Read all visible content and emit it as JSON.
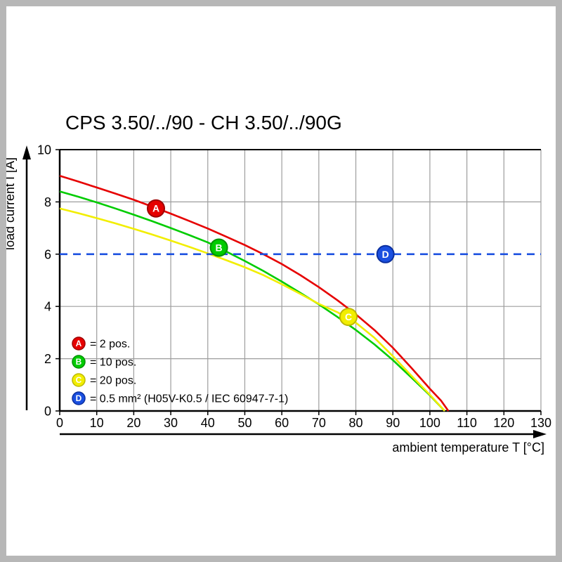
{
  "title": "CPS 3.50/../90 - CH 3.50/../90G",
  "chart_data": {
    "type": "line",
    "title": "CPS 3.50/../90 - CH 3.50/../90G",
    "xlabel": "ambient temperature T [°C]",
    "ylabel": "load current I [A]",
    "xlim": [
      0,
      130
    ],
    "ylim": [
      0,
      10
    ],
    "xticks": [
      0,
      10,
      20,
      30,
      40,
      50,
      60,
      70,
      80,
      90,
      100,
      110,
      120,
      130
    ],
    "yticks": [
      0,
      2,
      4,
      6,
      8,
      10
    ],
    "grid": true,
    "legend_position": "lower-left-inside",
    "colors": {
      "grid": "#9d9d9d",
      "axis": "#000000",
      "background": "#ffffff",
      "frame": "#b7b7b7"
    },
    "series": [
      {
        "id": "A",
        "legend": "= 2 pos.",
        "color": "#e60000",
        "edge": "#9e0000",
        "style": "solid",
        "points": [
          [
            0,
            9.0
          ],
          [
            5,
            8.78
          ],
          [
            10,
            8.55
          ],
          [
            15,
            8.32
          ],
          [
            20,
            8.08
          ],
          [
            25,
            7.82
          ],
          [
            30,
            7.55
          ],
          [
            35,
            7.27
          ],
          [
            40,
            6.98
          ],
          [
            45,
            6.67
          ],
          [
            50,
            6.35
          ],
          [
            55,
            6.0
          ],
          [
            60,
            5.62
          ],
          [
            65,
            5.2
          ],
          [
            70,
            4.74
          ],
          [
            75,
            4.24
          ],
          [
            80,
            3.7
          ],
          [
            85,
            3.1
          ],
          [
            90,
            2.42
          ],
          [
            95,
            1.65
          ],
          [
            100,
            0.85
          ],
          [
            103,
            0.4
          ],
          [
            105,
            0
          ]
        ],
        "marker": {
          "x": 26,
          "y": 7.75
        }
      },
      {
        "id": "B",
        "legend": "= 10 pos.",
        "color": "#00cc00",
        "edge": "#009100",
        "style": "solid",
        "points": [
          [
            0,
            8.4
          ],
          [
            5,
            8.2
          ],
          [
            10,
            7.98
          ],
          [
            15,
            7.75
          ],
          [
            20,
            7.51
          ],
          [
            25,
            7.26
          ],
          [
            30,
            7.0
          ],
          [
            35,
            6.73
          ],
          [
            40,
            6.45
          ],
          [
            45,
            6.1
          ],
          [
            50,
            5.74
          ],
          [
            55,
            5.36
          ],
          [
            60,
            4.95
          ],
          [
            65,
            4.52
          ],
          [
            70,
            4.08
          ],
          [
            75,
            3.6
          ],
          [
            80,
            3.1
          ],
          [
            85,
            2.55
          ],
          [
            90,
            1.95
          ],
          [
            95,
            1.28
          ],
          [
            100,
            0.6
          ],
          [
            104,
            0
          ]
        ],
        "marker": {
          "x": 43,
          "y": 6.25
        }
      },
      {
        "id": "C",
        "legend": "= 20 pos.",
        "color": "#f2ee00",
        "edge": "#bdb800",
        "style": "solid",
        "points": [
          [
            0,
            7.75
          ],
          [
            5,
            7.57
          ],
          [
            10,
            7.38
          ],
          [
            15,
            7.18
          ],
          [
            20,
            6.97
          ],
          [
            25,
            6.75
          ],
          [
            30,
            6.52
          ],
          [
            35,
            6.28
          ],
          [
            40,
            6.03
          ],
          [
            45,
            5.77
          ],
          [
            50,
            5.5
          ],
          [
            55,
            5.2
          ],
          [
            60,
            4.85
          ],
          [
            65,
            4.48
          ],
          [
            70,
            4.1
          ],
          [
            75,
            3.78
          ],
          [
            80,
            3.38
          ],
          [
            85,
            2.8
          ],
          [
            90,
            2.1
          ],
          [
            95,
            1.35
          ],
          [
            100,
            0.62
          ],
          [
            104,
            0
          ]
        ],
        "marker": {
          "x": 78,
          "y": 3.6
        }
      },
      {
        "id": "D",
        "legend": "= 0.5 mm² (H05V-K0.5 / IEC 60947-7-1)",
        "color": "#1a4fe0",
        "edge": "#0b2f9e",
        "style": "dashed",
        "hline": 6,
        "marker": {
          "x": 88,
          "y": 6.0
        }
      }
    ]
  }
}
